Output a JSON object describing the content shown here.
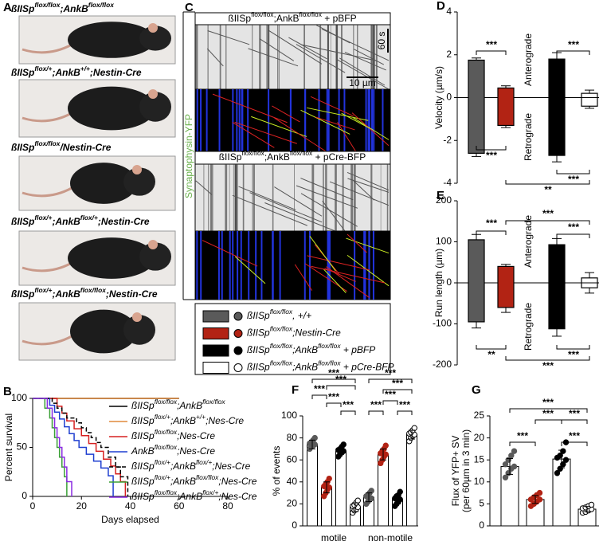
{
  "panel_a": {
    "label": "A",
    "captions": [
      [
        "ßIISp",
        "flox/flox",
        ";AnkB",
        "flox/flox"
      ],
      [
        "ßIISp",
        "flox/+",
        ";AnkB",
        "+/+",
        ";Nestin-Cre"
      ],
      [
        "ßIISp",
        "flox/flox",
        "/Nestin-Cre"
      ],
      [
        "ßIISp",
        "flox/+",
        ";AnkB",
        "flox/+",
        ";Nestin-Cre"
      ],
      [
        "ßIISp",
        "flox/+",
        ";AnkB",
        "flox/flox",
        ";Nestin-Cre"
      ]
    ]
  },
  "panel_c": {
    "label": "C",
    "side_label": "Synaptophysin-YFP",
    "headers": [
      [
        "ßIISp",
        "flox/flox",
        ";AnkB",
        "flox/flox",
        " + pBFP"
      ],
      [
        "ßIISp",
        "flox/flox",
        ";AnkB",
        "flox/flox",
        " + pCre-BFP"
      ]
    ],
    "time_scale": "60 s",
    "length_scale": "10 µm",
    "legend": [
      [
        "ßIISp",
        "flox/flox",
        ", +/+"
      ],
      [
        "ßIISp",
        "flox/flox",
        ";Nestin-Cre"
      ],
      [
        "ßIISp",
        "flox/flox",
        ";AnkB",
        "flox/flox",
        " + pBFP"
      ],
      [
        "ßIISp",
        "flox/flox",
        ";AnkB",
        "flox/flox",
        " + pCre-BFP"
      ]
    ],
    "legend_colors": [
      "#5a5a5a",
      "#b22314",
      "#000000",
      "#ffffff"
    ]
  },
  "chart_data": [
    {
      "type": "step",
      "label": "B",
      "xlabel": "Days elapsed",
      "ylabel": "Percent survival",
      "xlim": [
        0,
        80
      ],
      "ylim": [
        0,
        100
      ],
      "xticks": [
        0,
        20,
        40,
        60,
        80
      ],
      "yticks": [
        0,
        50,
        100
      ],
      "series": [
        {
          "name": [
            "ßIISp",
            "flox/flox",
            ";AnkB",
            "flox/flox"
          ],
          "color": "#000000",
          "dashed": false,
          "x": [
            0,
            60
          ],
          "values": [
            100,
            100
          ]
        },
        {
          "name": [
            "ßIISp",
            "flox/+",
            ";AnkB",
            "+/+",
            ";Nes-Cre"
          ],
          "color": "#e08a3c",
          "dashed": false,
          "x": [
            0,
            60
          ],
          "values": [
            100,
            100
          ]
        },
        {
          "name": [
            "ßIISp",
            "flox/flox",
            ";Nes-Cre"
          ],
          "color": "#d62020",
          "dashed": false,
          "x": [
            0,
            10,
            12,
            14,
            17,
            20,
            23,
            26,
            29,
            32,
            34,
            36,
            38
          ],
          "values": [
            100,
            92,
            85,
            77,
            69,
            62,
            54,
            46,
            38,
            31,
            23,
            15,
            0
          ]
        },
        {
          "name": [
            "AnkB",
            "flox/flox",
            ";Nes-Cre"
          ],
          "color": "#1f3fd0",
          "dashed": false,
          "x": [
            0,
            7,
            9,
            11,
            13,
            15,
            17,
            19,
            22,
            25,
            28,
            31,
            33
          ],
          "values": [
            100,
            93,
            86,
            79,
            71,
            64,
            57,
            50,
            43,
            36,
            29,
            21,
            0
          ]
        },
        {
          "name": [
            "ßIISp",
            "flox/+",
            ";AnkB",
            "flox/+",
            ";Nes-Cre"
          ],
          "color": "#000000",
          "dashed": true,
          "x": [
            0,
            8,
            10,
            12,
            14,
            18,
            20,
            22,
            24,
            26,
            28,
            31,
            34,
            36,
            39
          ],
          "values": [
            100,
            95,
            90,
            85,
            80,
            75,
            70,
            65,
            60,
            55,
            50,
            40,
            30,
            20,
            0
          ]
        },
        {
          "name": [
            "ßIISp",
            "flox/+",
            ";AnkB",
            "flox/flox",
            ";Nes-Cre"
          ],
          "color": "#3aa035",
          "dashed": false,
          "x": [
            0,
            5,
            7,
            8,
            9,
            10,
            11,
            12,
            13,
            14
          ],
          "values": [
            100,
            90,
            80,
            70,
            60,
            50,
            40,
            30,
            20,
            0
          ]
        },
        {
          "name": [
            "ßIISp",
            "flox/flox",
            ";AnkB",
            "flox/+",
            ";Nes-Cre"
          ],
          "color": "#8a2be2",
          "dashed": false,
          "x": [
            0,
            6,
            8,
            9,
            10,
            11,
            12,
            13,
            14,
            16
          ],
          "values": [
            100,
            90,
            80,
            70,
            60,
            50,
            40,
            30,
            15,
            0
          ]
        }
      ]
    },
    {
      "type": "floating-box",
      "label": "D",
      "ylabel": "Velocity (µm/s)",
      "upper_label": "Anterograde",
      "lower_label": "Retrograde",
      "ylim": [
        -4,
        4
      ],
      "yticks": [
        -4,
        -2,
        0,
        2,
        4
      ],
      "boxes": [
        {
          "color": "#5a5a5a",
          "high": 1.75,
          "low": -2.6,
          "whisker_high": 1.85,
          "whisker_low": -2.75
        },
        {
          "color": "#b22314",
          "high": 0.45,
          "low": -1.3,
          "whisker_high": 0.55,
          "whisker_low": -1.4
        },
        {
          "color": "#000000",
          "high": 1.8,
          "low": -2.7,
          "whisker_high": 2.1,
          "whisker_low": -3.0
        },
        {
          "color": "#ffffff",
          "high": 0.2,
          "low": -0.4,
          "whisker_high": 0.35,
          "whisker_low": -0.5,
          "median": 0
        }
      ],
      "annotations": [
        "***",
        "***",
        "***",
        "***",
        "**"
      ]
    },
    {
      "type": "floating-box",
      "label": "E",
      "ylabel": "Run length (µm)",
      "upper_label": "Anterograde",
      "lower_label": "Retrograde",
      "ylim": [
        -200,
        200
      ],
      "yticks": [
        -200,
        -100,
        0,
        100,
        200
      ],
      "boxes": [
        {
          "color": "#5a5a5a",
          "high": 105,
          "low": -95,
          "whisker_high": 118,
          "whisker_low": -110
        },
        {
          "color": "#b22314",
          "high": 40,
          "low": -60,
          "whisker_high": 45,
          "whisker_low": -72
        },
        {
          "color": "#000000",
          "high": 93,
          "low": -112,
          "whisker_high": 108,
          "whisker_low": -130
        },
        {
          "color": "#ffffff",
          "high": 12,
          "low": -12,
          "whisker_high": 25,
          "whisker_low": -25,
          "median": 0
        }
      ],
      "annotations": [
        "***",
        "***",
        "***",
        "**",
        "***",
        "***"
      ]
    },
    {
      "type": "bar-dots",
      "label": "F",
      "ylabel": "% of events",
      "categories": [
        "motile",
        "non-motile"
      ],
      "ylim": [
        0,
        100
      ],
      "yticks": [
        0,
        20,
        40,
        60,
        80,
        100
      ],
      "series": [
        {
          "color": "#5a5a5a",
          "values": [
            74,
            26
          ],
          "errors": [
            4,
            4
          ],
          "points": [
            [
              70,
              72,
              73,
              74,
              75,
              76,
              78,
              80
            ],
            [
              20,
              22,
              24,
              25,
              27,
              28,
              30,
              32
            ]
          ]
        },
        {
          "color": "#b22314",
          "values": [
            35,
            65
          ],
          "errors": [
            5,
            5
          ],
          "points": [
            [
              27,
              30,
              33,
              35,
              36,
              38,
              40,
              43
            ],
            [
              57,
              60,
              63,
              65,
              66,
              68,
              70,
              73
            ]
          ]
        },
        {
          "color": "#000000",
          "values": [
            68,
            24
          ],
          "errors": [
            3,
            4
          ],
          "points": [
            [
              63,
              65,
              67,
              68,
              69,
              70,
              72,
              74
            ],
            [
              18,
              20,
              22,
              24,
              25,
              27,
              28,
              31
            ]
          ]
        },
        {
          "color": "#ffffff",
          "values": [
            17,
            83
          ],
          "errors": [
            4,
            4
          ],
          "points": [
            [
              12,
              14,
              15,
              17,
              18,
              19,
              21,
              23
            ],
            [
              77,
              80,
              82,
              83,
              84,
              85,
              87,
              89
            ]
          ]
        }
      ],
      "annotations": [
        "***",
        "***",
        "***",
        "***",
        "***",
        "***",
        "***",
        "***",
        "***",
        "***"
      ]
    },
    {
      "type": "bar-dots",
      "label": "G",
      "ylabel": "Flux of YFP+ SV",
      "ylabel_sub": "(per 60µm in 3 min)",
      "categories": [
        null
      ],
      "ylim": [
        0,
        25
      ],
      "yticks": [
        0,
        5,
        10,
        15,
        20,
        25
      ],
      "series": [
        {
          "color": "#5a5a5a",
          "values": [
            13.5
          ],
          "errors": [
            1.8
          ],
          "points": [
            [
              11,
              12,
              13,
              13.5,
              14,
              15,
              16,
              17
            ]
          ]
        },
        {
          "color": "#b22314",
          "values": [
            6
          ],
          "errors": [
            0.9
          ],
          "points": [
            [
              4.5,
              5,
              5.5,
              6,
              6,
              6.5,
              7,
              7.5
            ]
          ]
        },
        {
          "color": "#000000",
          "values": [
            15.2
          ],
          "errors": [
            2
          ],
          "points": [
            [
              12,
              13,
              14,
              15,
              15.5,
              16,
              17,
              19
            ]
          ]
        },
        {
          "color": "#ffffff",
          "values": [
            3.8
          ],
          "errors": [
            0.6
          ],
          "points": [
            [
              3,
              3.2,
              3.5,
              3.8,
              4,
              4.2,
              4.5,
              4.8
            ]
          ]
        }
      ],
      "annotations": [
        "***",
        "***",
        "***",
        "***",
        "***"
      ]
    }
  ]
}
